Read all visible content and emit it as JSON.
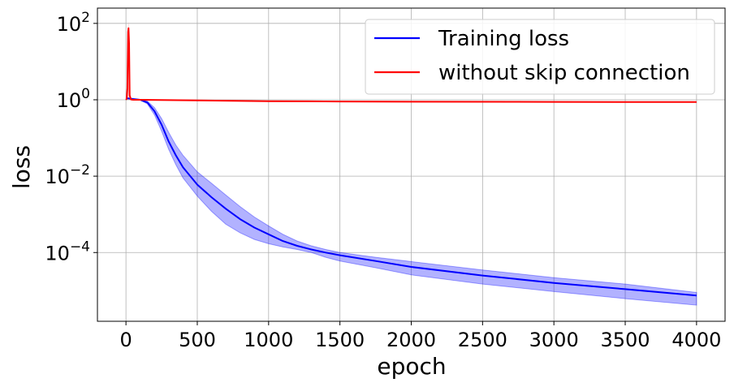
{
  "chart_data": {
    "type": "line",
    "xlabel": "epoch",
    "ylabel": "loss",
    "yscale": "log",
    "xlim": [
      -200,
      4200
    ],
    "ylim_exp": [
      -5.8,
      2.4
    ],
    "x_ticks": [
      0,
      500,
      1000,
      1500,
      2000,
      2500,
      3000,
      3500,
      4000
    ],
    "x_tick_labels": [
      "0",
      "500",
      "1000",
      "1500",
      "2000",
      "2500",
      "3000",
      "3500",
      "4000"
    ],
    "y_ticks_exp": [
      2,
      0,
      -2,
      -4
    ],
    "y_tick_labels": [
      {
        "base": "10",
        "exp": "2"
      },
      {
        "base": "10",
        "exp": "0"
      },
      {
        "base": "10",
        "exp": "−2"
      },
      {
        "base": "10",
        "exp": "−4"
      }
    ],
    "grid": true,
    "legend_position": "top-right",
    "series": [
      {
        "name": "Training loss",
        "color": "#0000ff",
        "band_color": "#0000ff",
        "x": [
          0,
          50,
          100,
          150,
          200,
          250,
          300,
          350,
          400,
          500,
          600,
          700,
          800,
          900,
          1000,
          1100,
          1200,
          1300,
          1400,
          1500,
          1750,
          2000,
          2500,
          3000,
          3500,
          4000
        ],
        "y": [
          1.1,
          1.05,
          1.0,
          0.85,
          0.5,
          0.22,
          0.08,
          0.035,
          0.017,
          0.006,
          0.0028,
          0.0014,
          0.00075,
          0.00045,
          0.0003,
          0.0002,
          0.00015,
          0.00012,
          0.0001,
          8.5e-05,
          6e-05,
          4.2e-05,
          2.5e-05,
          1.6e-05,
          1.1e-05,
          7.5e-06
        ],
        "lower": [
          1.1,
          1.05,
          0.98,
          0.78,
          0.4,
          0.15,
          0.05,
          0.02,
          0.009,
          0.003,
          0.0012,
          0.00055,
          0.00033,
          0.00022,
          0.00017,
          0.00014,
          0.00012,
          0.0001,
          7.5e-05,
          6e-05,
          4e-05,
          2.6e-05,
          1.5e-05,
          9.5e-06,
          6.2e-06,
          4.2e-06
        ],
        "upper": [
          1.1,
          1.05,
          1.02,
          0.92,
          0.62,
          0.32,
          0.14,
          0.065,
          0.035,
          0.013,
          0.0065,
          0.0032,
          0.0016,
          0.00085,
          0.0005,
          0.0003,
          0.0002,
          0.00015,
          0.00012,
          0.0001,
          7.5e-05,
          5.8e-05,
          3.5e-05,
          2.2e-05,
          1.5e-05,
          9e-06
        ]
      },
      {
        "name": "without skip connection",
        "color": "#ff0000",
        "band_color": "#ff9999",
        "x": [
          0,
          5,
          10,
          15,
          18,
          22,
          26,
          35,
          50,
          100,
          500,
          1000,
          1500,
          2000,
          3000,
          4000
        ],
        "y": [
          1.0,
          1.05,
          2.0,
          60,
          75,
          30,
          1.3,
          1.02,
          1.0,
          1.0,
          0.96,
          0.92,
          0.9,
          0.89,
          0.88,
          0.87
        ],
        "band_x": [
          10,
          16,
          19,
          23,
          28
        ],
        "band_upper": [
          2.5,
          90,
          110,
          45,
          1.5
        ]
      }
    ]
  }
}
